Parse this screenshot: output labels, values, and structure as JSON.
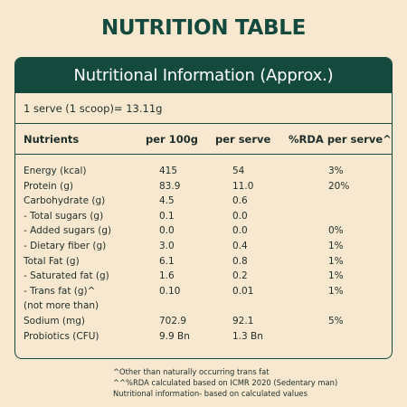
{
  "title": "NUTRITION TABLE",
  "card": {
    "heading": "Nutritional Information (Approx.)",
    "serve": "1 serve (1 scoop)= 13.11g",
    "headers": [
      "Nutrients",
      "per 100g",
      "per serve",
      "%RDA per serve^^"
    ],
    "rows": [
      {
        "name": "Energy (kcal)",
        "per100": "415",
        "serve": "54",
        "rda": "3%"
      },
      {
        "name": "Protein (g)",
        "per100": "83.9",
        "serve": "11.0",
        "rda": "20%"
      },
      {
        "name": "Carbohydrate (g)",
        "per100": "4.5",
        "serve": "0.6",
        "rda": ""
      },
      {
        "name": "- Total sugars (g)",
        "per100": "0.1",
        "serve": "0.0",
        "rda": ""
      },
      {
        "name": "- Added sugars (g)",
        "per100": "0.0",
        "serve": "0.0",
        "rda": "0%"
      },
      {
        "name": "- Dietary fiber (g)",
        "per100": "3.0",
        "serve": "0.4",
        "rda": "1%"
      },
      {
        "name": "Total Fat (g)",
        "per100": "6.1",
        "serve": "0.8",
        "rda": "1%"
      },
      {
        "name": "- Saturated fat (g)",
        "per100": "1.6",
        "serve": "0.2",
        "rda": "1%"
      },
      {
        "name": "- Trans fat (g)^",
        "per100": "0.10",
        "serve": "0.01",
        "rda": "1%"
      },
      {
        "name": "(not more than)",
        "per100": "",
        "serve": "",
        "rda": ""
      },
      {
        "name": "Sodium (mg)",
        "per100": "702.9",
        "serve": "92.1",
        "rda": "5%"
      },
      {
        "name": "Probiotics (CFU)",
        "per100": "9.9 Bn",
        "serve": "1.3 Bn",
        "rda": ""
      }
    ]
  },
  "notes": [
    "^Other than naturally occurring trans fat",
    "^^%RDA calculated based on ICMR 2020 (Sedentary man)",
    "Nutritional information- based on calculated values"
  ],
  "colors": {
    "background": "#f7e8cf",
    "accent": "#134a3d"
  }
}
